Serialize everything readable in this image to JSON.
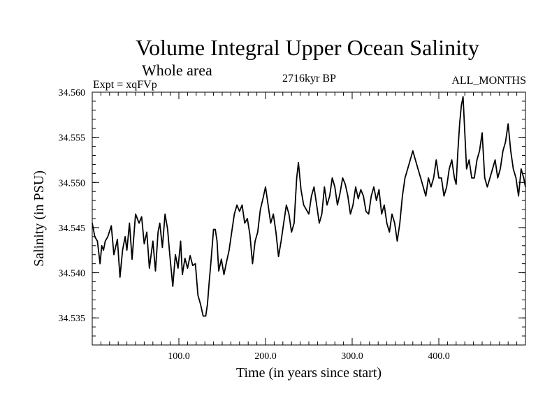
{
  "header": {
    "title": "Volume Integral Upper Ocean Salinity",
    "subtitle": "Whole area",
    "experiment": "Expt = xqFVp",
    "date": "2716kyr BP",
    "season": "ALL_MONTHS"
  },
  "chart_data": {
    "type": "line",
    "title": "Volume Integral Upper Ocean Salinity",
    "xlabel": "Time (in years since start)",
    "ylabel": "Salinity (in PSU)",
    "xlim": [
      0,
      500
    ],
    "ylim": [
      34.532,
      34.56
    ],
    "x_ticks": [
      100,
      200,
      300,
      400
    ],
    "x_tick_labels": [
      "100.0",
      "200.0",
      "300.0",
      "400.0"
    ],
    "y_ticks": [
      34.535,
      34.54,
      34.545,
      34.55,
      34.555,
      34.56
    ],
    "y_tick_labels": [
      "34.535",
      "34.540",
      "34.545",
      "34.550",
      "34.555",
      "34.560"
    ],
    "grid": false,
    "series": [
      {
        "name": "Salinity",
        "color": "#000000",
        "x": [
          0,
          3,
          6,
          9,
          11,
          13,
          15,
          18,
          22,
          25,
          29,
          32,
          35,
          38,
          40,
          43,
          46,
          50,
          54,
          57,
          60,
          63,
          66,
          70,
          73,
          76,
          78,
          81,
          84,
          87,
          89,
          91,
          93,
          96,
          99,
          102,
          104,
          107,
          110,
          113,
          116,
          119,
          122,
          125,
          128,
          131,
          133,
          135,
          137,
          140,
          142,
          144,
          146,
          149,
          152,
          155,
          158,
          161,
          164,
          167,
          170,
          173,
          176,
          179,
          182,
          185,
          188,
          191,
          194,
          197,
          200,
          203,
          206,
          209,
          212,
          215,
          218,
          221,
          224,
          227,
          230,
          233,
          236,
          238,
          241,
          244,
          247,
          250,
          253,
          256,
          259,
          262,
          265,
          268,
          271,
          274,
          277,
          280,
          283,
          286,
          289,
          292,
          295,
          298,
          301,
          304,
          307,
          310,
          313,
          316,
          319,
          322,
          325,
          328,
          331,
          334,
          337,
          340,
          343,
          346,
          349,
          352,
          355,
          358,
          361,
          364,
          367,
          370,
          373,
          376,
          379,
          382,
          385,
          388,
          391,
          394,
          397,
          400,
          403,
          406,
          409,
          412,
          415,
          418,
          420,
          422,
          424,
          426,
          428,
          430,
          432,
          435,
          438,
          441,
          444,
          447,
          450,
          453,
          456,
          459,
          462,
          465,
          468,
          471,
          474,
          477,
          480,
          483,
          486,
          489,
          492,
          495,
          498,
          500
        ],
        "values": [
          34.5455,
          34.544,
          34.5435,
          34.541,
          34.543,
          34.5425,
          34.5435,
          34.544,
          34.5452,
          34.542,
          34.5437,
          34.5395,
          34.5425,
          34.544,
          34.5425,
          34.5455,
          34.5415,
          34.5465,
          34.5455,
          34.5462,
          34.5432,
          34.5445,
          34.5405,
          34.5435,
          34.5402,
          34.5445,
          34.5455,
          34.5428,
          34.5465,
          34.5448,
          34.5425,
          34.5405,
          34.5385,
          34.542,
          34.5405,
          34.5435,
          34.5398,
          34.5416,
          34.5405,
          34.5419,
          34.5408,
          34.541,
          34.5375,
          34.5365,
          34.5352,
          34.5352,
          34.5365,
          34.539,
          34.5412,
          34.5448,
          34.5448,
          34.5435,
          34.5402,
          34.5415,
          34.5398,
          34.5412,
          34.5425,
          34.5445,
          34.5465,
          34.5475,
          34.5468,
          34.5475,
          34.5455,
          34.546,
          34.5442,
          34.541,
          34.5435,
          34.5445,
          34.547,
          34.5482,
          34.5495,
          34.5475,
          34.5455,
          34.5465,
          34.5445,
          34.5418,
          34.5435,
          34.5455,
          34.5475,
          34.5465,
          34.5445,
          34.5455,
          34.5505,
          34.5522,
          34.5492,
          34.5475,
          34.547,
          34.5465,
          34.5485,
          34.5495,
          34.5475,
          34.5455,
          34.5465,
          34.5495,
          34.5475,
          34.5485,
          34.5505,
          34.5495,
          34.5475,
          34.5488,
          34.5505,
          34.5498,
          34.5485,
          34.5465,
          34.5475,
          34.5495,
          34.5482,
          34.5492,
          34.5485,
          34.5468,
          34.5465,
          34.5485,
          34.5495,
          34.548,
          34.5492,
          34.5465,
          34.5475,
          34.5455,
          34.5445,
          34.5465,
          34.5455,
          34.5435,
          34.5455,
          34.5485,
          34.5505,
          34.5515,
          34.5525,
          34.5535,
          34.5525,
          34.5515,
          34.5505,
          34.5495,
          34.5485,
          34.5505,
          34.5495,
          34.5505,
          34.5525,
          34.5505,
          34.5505,
          34.5485,
          34.5495,
          34.5515,
          34.5525,
          34.5505,
          34.5498,
          34.5535,
          34.5565,
          34.5585,
          34.5595,
          34.5555,
          34.5515,
          34.5525,
          34.5505,
          34.5505,
          34.5525,
          34.5535,
          34.5555,
          34.5505,
          34.5495,
          34.5505,
          34.5515,
          34.5525,
          34.5505,
          34.5515,
          34.5535,
          34.5545,
          34.5565,
          34.5535,
          34.5515,
          34.5505,
          34.5485,
          34.5515,
          34.5505,
          34.5495
        ]
      }
    ]
  }
}
